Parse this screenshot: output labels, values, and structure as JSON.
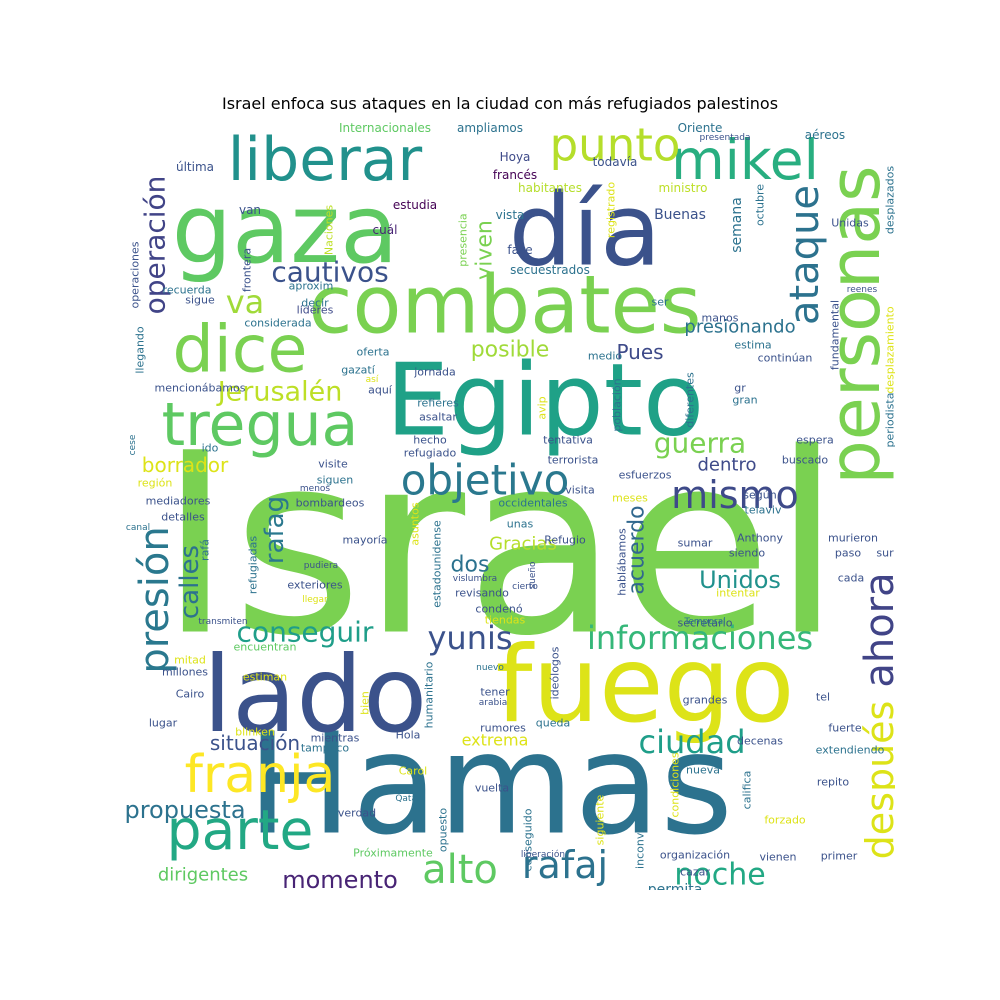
{
  "title": "Israel enfoca sus ataques en la ciudad con más refugiados palestinos",
  "words": [
    {
      "text": "Israel",
      "color": "#7ad151"
    },
    {
      "text": "Hamas",
      "color": "#2c728e"
    },
    {
      "text": "fuego",
      "color": "#dde318"
    },
    {
      "text": "Egipto",
      "color": "#1fa187"
    },
    {
      "text": "lado",
      "color": "#3b528b"
    },
    {
      "text": "día",
      "color": "#3b528b"
    },
    {
      "text": "gaza",
      "color": "#5ec962"
    },
    {
      "text": "combates",
      "color": "#7ad151"
    },
    {
      "text": "personas",
      "color": "#7ad151"
    },
    {
      "text": "liberar",
      "color": "#21918c"
    },
    {
      "text": "mikel",
      "color": "#28ae80"
    },
    {
      "text": "dice",
      "color": "#7ad151"
    },
    {
      "text": "tregua",
      "color": "#5ec962"
    },
    {
      "text": "franja",
      "color": "#fde725"
    },
    {
      "text": "parte",
      "color": "#22a884"
    },
    {
      "text": "punto",
      "color": "#b5de2b"
    },
    {
      "text": "ahora",
      "color": "#414487"
    },
    {
      "text": "presión",
      "color": "#2a788e"
    },
    {
      "text": "después",
      "color": "#dde318"
    },
    {
      "text": "ataque",
      "color": "#2c728e"
    },
    {
      "text": "objetivo",
      "color": "#2a788e"
    },
    {
      "text": "mismo",
      "color": "#3e4a89"
    },
    {
      "text": "informaciones",
      "color": "#35b779"
    },
    {
      "text": "ciudad",
      "color": "#1f9e89"
    },
    {
      "text": "alto",
      "color": "#5ec962"
    },
    {
      "text": "rafaj",
      "color": "#2c728e"
    },
    {
      "text": "noche",
      "color": "#22a884"
    },
    {
      "text": "yunis",
      "color": "#3b528b"
    },
    {
      "text": "conseguir",
      "color": "#1f9e89"
    },
    {
      "text": "cautivos",
      "color": "#3b528b"
    },
    {
      "text": "va",
      "color": "#a0da39"
    },
    {
      "text": "Jerusalén",
      "color": "#bddf26"
    },
    {
      "text": "guerra",
      "color": "#7ad151"
    },
    {
      "text": "operación",
      "color": "#414487"
    },
    {
      "text": "calles",
      "color": "#2c728e"
    },
    {
      "text": "rafag",
      "color": "#2a788e"
    },
    {
      "text": "Unidos",
      "color": "#21918c"
    },
    {
      "text": "acuerdo",
      "color": "#31688e"
    },
    {
      "text": "propuesta",
      "color": "#2c728e"
    },
    {
      "text": "momento",
      "color": "#482475"
    },
    {
      "text": "situación",
      "color": "#3b528b"
    },
    {
      "text": "borrador",
      "color": "#dde318"
    },
    {
      "text": "dos",
      "color": "#2c728e"
    },
    {
      "text": "viven",
      "color": "#7ad151"
    },
    {
      "text": "posible",
      "color": "#a0da39"
    },
    {
      "text": "Pues",
      "color": "#3e4a89"
    },
    {
      "text": "dentro",
      "color": "#3e4a89"
    },
    {
      "text": "presionando",
      "color": "#2c728e"
    },
    {
      "text": "Gracias",
      "color": "#b5de2b"
    },
    {
      "text": "dirigentes",
      "color": "#5ec962"
    },
    {
      "text": "extrema",
      "color": "#dde318"
    },
    {
      "text": "permita",
      "color": "#2c728e"
    },
    {
      "text": "semana",
      "color": "#2c728e"
    },
    {
      "text": "Buenas",
      "color": "#3b528b"
    },
    {
      "text": "estudia",
      "color": "#440154"
    },
    {
      "text": "fase",
      "color": "#3b528b"
    },
    {
      "text": "secuestrados",
      "color": "#2c728e"
    },
    {
      "text": "cuál",
      "color": "#482475"
    },
    {
      "text": "vista",
      "color": "#2c728e"
    },
    {
      "text": "habitantes",
      "color": "#b5de2b"
    },
    {
      "text": "francés",
      "color": "#440154"
    },
    {
      "text": "Hoya",
      "color": "#3e4a89"
    },
    {
      "text": "todavía",
      "color": "#3b528b"
    },
    {
      "text": "ministro",
      "color": "#bddf26"
    },
    {
      "text": "Oriente",
      "color": "#2c728e"
    },
    {
      "text": "aéreos",
      "color": "#2c728e"
    },
    {
      "text": "presentada",
      "color": "#3b528b"
    },
    {
      "text": "ampliamos",
      "color": "#2c728e"
    },
    {
      "text": "Internacionales",
      "color": "#5ec962"
    },
    {
      "text": "última",
      "color": "#3b528b"
    },
    {
      "text": "van",
      "color": "#3b528b"
    },
    {
      "text": "frontera",
      "color": "#3b528b"
    },
    {
      "text": "Naciones",
      "color": "#bddf26"
    },
    {
      "text": "presencia",
      "color": "#7ad151"
    },
    {
      "text": "registrado",
      "color": "#dde318"
    },
    {
      "text": "octubre",
      "color": "#2c728e"
    },
    {
      "text": "Unidas",
      "color": "#3b528b"
    },
    {
      "text": "desplazados",
      "color": "#2c728e"
    },
    {
      "text": "operaciones",
      "color": "#3b528b"
    },
    {
      "text": "recuerda",
      "color": "#2c728e"
    },
    {
      "text": "aproxim",
      "color": "#2c728e"
    },
    {
      "text": "decir",
      "color": "#2c728e"
    },
    {
      "text": "sigue",
      "color": "#3b528b"
    },
    {
      "text": "líderes",
      "color": "#3e4a89"
    },
    {
      "text": "considerada",
      "color": "#2c728e"
    },
    {
      "text": "ser",
      "color": "#2c728e"
    },
    {
      "text": "manos",
      "color": "#3b528b"
    },
    {
      "text": "reenes",
      "color": "#3b528b"
    },
    {
      "text": "fundamental",
      "color": "#3b528b"
    },
    {
      "text": "desplazamiento",
      "color": "#dde318"
    },
    {
      "text": "llegando",
      "color": "#2c728e"
    },
    {
      "text": "oferta",
      "color": "#2c728e"
    },
    {
      "text": "medio",
      "color": "#2c728e"
    },
    {
      "text": "estima",
      "color": "#2c728e"
    },
    {
      "text": "continúan",
      "color": "#3b528b"
    },
    {
      "text": "mencionábamos",
      "color": "#3b528b"
    },
    {
      "text": "gazatí",
      "color": "#2c728e"
    },
    {
      "text": "jornada",
      "color": "#3b528b"
    },
    {
      "text": "así",
      "color": "#dde318"
    },
    {
      "text": "aquí",
      "color": "#3b528b"
    },
    {
      "text": "refieres",
      "color": "#2c728e"
    },
    {
      "text": "asaltar",
      "color": "#3b528b"
    },
    {
      "text": "avip",
      "color": "#dde318"
    },
    {
      "text": "población",
      "color": "#2c728e"
    },
    {
      "text": "diferentes",
      "color": "#2c728e"
    },
    {
      "text": "gr",
      "color": "#3b528b"
    },
    {
      "text": "gran",
      "color": "#2c728e"
    },
    {
      "text": "periodista",
      "color": "#2c728e"
    },
    {
      "text": "ido",
      "color": "#2c728e"
    },
    {
      "text": "hecho",
      "color": "#3b528b"
    },
    {
      "text": "refugiado",
      "color": "#3b528b"
    },
    {
      "text": "tentativa",
      "color": "#3b528b"
    },
    {
      "text": "espera",
      "color": "#3b528b"
    },
    {
      "text": "cese",
      "color": "#2c728e"
    },
    {
      "text": "visite",
      "color": "#3b528b"
    },
    {
      "text": "terrorista",
      "color": "#3b528b"
    },
    {
      "text": "buscado",
      "color": "#3b528b"
    },
    {
      "text": "esfuerzos",
      "color": "#3b528b"
    },
    {
      "text": "región",
      "color": "#dde318"
    },
    {
      "text": "siguen",
      "color": "#2c728e"
    },
    {
      "text": "visita",
      "color": "#3b528b"
    },
    {
      "text": "menos",
      "color": "#3b528b"
    },
    {
      "text": "occidentales",
      "color": "#2c728e"
    },
    {
      "text": "meses",
      "color": "#dde318"
    },
    {
      "text": "mediadores",
      "color": "#3b528b"
    },
    {
      "text": "bombardeos",
      "color": "#3b528b"
    },
    {
      "text": "según",
      "color": "#3b528b"
    },
    {
      "text": "detalles",
      "color": "#3b528b"
    },
    {
      "text": "telaviv",
      "color": "#2c728e"
    },
    {
      "text": "canal",
      "color": "#2c728e"
    },
    {
      "text": "asuntos",
      "color": "#dde318"
    },
    {
      "text": "unas",
      "color": "#2c728e"
    },
    {
      "text": "Anthony",
      "color": "#3b528b"
    },
    {
      "text": "rafá",
      "color": "#2c728e"
    },
    {
      "text": "mayoría",
      "color": "#3b528b"
    },
    {
      "text": "Refugio",
      "color": "#3b528b"
    },
    {
      "text": "sumar",
      "color": "#3b528b"
    },
    {
      "text": "siendo",
      "color": "#3b528b"
    },
    {
      "text": "murieron",
      "color": "#3b528b"
    },
    {
      "text": "paso",
      "color": "#3b528b"
    },
    {
      "text": "sur",
      "color": "#3b528b"
    },
    {
      "text": "refugiadas",
      "color": "#2c728e"
    },
    {
      "text": "estadounidense",
      "color": "#2c728e"
    },
    {
      "text": "hablábamos",
      "color": "#3b528b"
    },
    {
      "text": "cada",
      "color": "#3b528b"
    },
    {
      "text": "pudiera",
      "color": "#3b528b"
    },
    {
      "text": "vislumbra",
      "color": "#3b528b"
    },
    {
      "text": "sueño",
      "color": "#3b528b"
    },
    {
      "text": "exteriores",
      "color": "#3b528b"
    },
    {
      "text": "revisando",
      "color": "#3b528b"
    },
    {
      "text": "intentar",
      "color": "#dde318"
    },
    {
      "text": "llegar",
      "color": "#dde318"
    },
    {
      "text": "condenó",
      "color": "#3b528b"
    },
    {
      "text": "transmiten",
      "color": "#3b528b"
    },
    {
      "text": "tiendas",
      "color": "#dde318"
    },
    {
      "text": "secretario",
      "color": "#3b528b"
    },
    {
      "text": "Temporal",
      "color": "#2c728e"
    },
    {
      "text": "encuentran",
      "color": "#5ec962"
    },
    {
      "text": "mitad",
      "color": "#dde318"
    },
    {
      "text": "millones",
      "color": "#3b528b"
    },
    {
      "text": "nuevo",
      "color": "#2c728e"
    },
    {
      "text": "estiman",
      "color": "#dde318"
    },
    {
      "text": "humanitario",
      "color": "#2c728e"
    },
    {
      "text": "tener",
      "color": "#3b528b"
    },
    {
      "text": "ideólogos",
      "color": "#3b528b"
    },
    {
      "text": "arabia",
      "color": "#3b528b"
    },
    {
      "text": "tel",
      "color": "#3b528b"
    },
    {
      "text": "Cairo",
      "color": "#3b528b"
    },
    {
      "text": "bien",
      "color": "#dde318"
    },
    {
      "text": "grandes",
      "color": "#3b528b"
    },
    {
      "text": "rumores",
      "color": "#3b528b"
    },
    {
      "text": "queda",
      "color": "#2c728e"
    },
    {
      "text": "lugar",
      "color": "#3b528b"
    },
    {
      "text": "fuerte",
      "color": "#3b528b"
    },
    {
      "text": "blinken",
      "color": "#dde318"
    },
    {
      "text": "mientras",
      "color": "#3b528b"
    },
    {
      "text": "tampoco",
      "color": "#2c728e"
    },
    {
      "text": "Hola",
      "color": "#3b528b"
    },
    {
      "text": "decenas",
      "color": "#3b528b"
    },
    {
      "text": "extendiendo",
      "color": "#2c728e"
    },
    {
      "text": "Carol",
      "color": "#dde318"
    },
    {
      "text": "califica",
      "color": "#2c728e"
    },
    {
      "text": "nueva",
      "color": "#2c728e"
    },
    {
      "text": "repito",
      "color": "#3b528b"
    },
    {
      "text": "vuelta",
      "color": "#3b528b"
    },
    {
      "text": "verdad",
      "color": "#3b528b"
    },
    {
      "text": "Qatar",
      "color": "#2c728e"
    },
    {
      "text": "forzado",
      "color": "#dde318"
    },
    {
      "text": "opuesto",
      "color": "#2c728e"
    },
    {
      "text": "conseguido",
      "color": "#2c728e"
    },
    {
      "text": "siguiente",
      "color": "#dde318"
    },
    {
      "text": "inconveniente",
      "color": "#2c728e"
    },
    {
      "text": "condiciones",
      "color": "#dde318"
    },
    {
      "text": "Próximamente",
      "color": "#5ec962"
    },
    {
      "text": "liberación",
      "color": "#3b528b"
    },
    {
      "text": "organización",
      "color": "#3b528b"
    },
    {
      "text": "vienen",
      "color": "#3b528b"
    },
    {
      "text": "primer",
      "color": "#3b528b"
    },
    {
      "text": "cazar",
      "color": "#3b528b"
    },
    {
      "text": "cierto",
      "color": "#3b528b"
    }
  ]
}
